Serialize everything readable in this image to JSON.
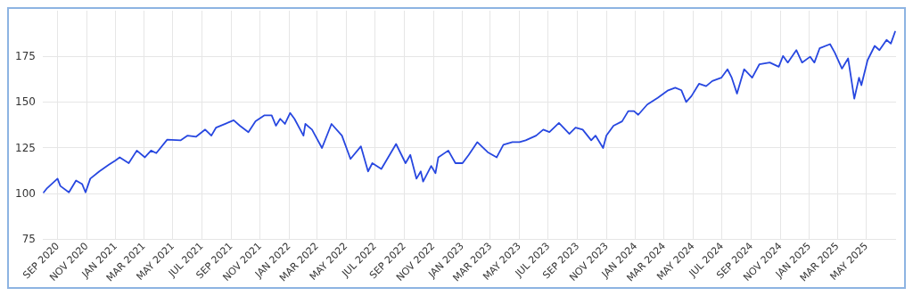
{
  "chart_data": {
    "type": "line",
    "x": [
      "2020-08-03",
      "2020-08-10",
      "2020-09-01",
      "2020-09-07",
      "2020-09-25",
      "2020-10-10",
      "2020-10-23",
      "2020-10-30",
      "2020-11-09",
      "2020-11-28",
      "2020-12-18",
      "2021-01-01",
      "2021-01-10",
      "2021-01-29",
      "2021-02-15",
      "2021-03-04",
      "2021-03-17",
      "2021-03-28",
      "2021-04-20",
      "2021-05-18",
      "2021-06-02",
      "2021-06-20",
      "2021-07-09",
      "2021-07-22",
      "2021-08-01",
      "2021-09-07",
      "2021-09-20",
      "2021-10-08",
      "2021-10-23",
      "2021-11-11",
      "2021-11-26",
      "2021-12-05",
      "2021-12-14",
      "2021-12-24",
      "2022-01-04",
      "2022-01-13",
      "2022-02-01",
      "2022-02-05",
      "2022-02-19",
      "2022-03-12",
      "2022-04-01",
      "2022-04-23",
      "2022-05-11",
      "2022-06-02",
      "2022-06-17",
      "2022-06-26",
      "2022-07-15",
      "2022-08-15",
      "2022-09-04",
      "2022-09-14",
      "2022-09-27",
      "2022-10-06",
      "2022-10-11",
      "2022-10-28",
      "2022-11-06",
      "2022-11-12",
      "2022-12-03",
      "2022-12-18",
      "2023-01-02",
      "2023-01-15",
      "2023-02-02",
      "2023-02-24",
      "2023-03-15",
      "2023-03-29",
      "2023-04-17",
      "2023-05-02",
      "2023-05-15",
      "2023-06-06",
      "2023-06-21",
      "2023-07-04",
      "2023-07-24",
      "2023-08-15",
      "2023-08-28",
      "2023-09-12",
      "2023-09-30",
      "2023-10-09",
      "2023-10-25",
      "2023-11-01",
      "2023-11-16",
      "2023-12-04",
      "2023-12-17",
      "2023-12-29",
      "2024-01-07",
      "2024-01-26",
      "2024-02-17",
      "2024-03-10",
      "2024-03-25",
      "2024-04-07",
      "2024-04-17",
      "2024-04-28",
      "2024-05-14",
      "2024-05-29",
      "2024-06-11",
      "2024-06-30",
      "2024-07-13",
      "2024-07-22",
      "2024-08-02",
      "2024-08-17",
      "2024-09-03",
      "2024-09-18",
      "2024-10-10",
      "2024-10-29",
      "2024-11-07",
      "2024-11-17",
      "2024-12-05",
      "2024-12-17",
      "2025-01-03",
      "2025-01-12",
      "2025-01-23",
      "2025-02-14",
      "2025-02-24",
      "2025-03-11",
      "2025-03-24",
      "2025-04-06",
      "2025-04-16",
      "2025-04-21",
      "2025-05-04",
      "2025-05-19",
      "2025-05-29",
      "2025-06-13",
      "2025-06-22",
      "2025-07-01"
    ],
    "series": [
      {
        "color": "#2747e0",
        "values": [
          100.5,
          102.8,
          108,
          104,
          100.5,
          107,
          105,
          100.5,
          108,
          112,
          115.6,
          118,
          119.7,
          116.5,
          123.4,
          119.7,
          123.4,
          122,
          129.4,
          129,
          131.6,
          131,
          134.9,
          131.6,
          136,
          140,
          137,
          133.5,
          139.4,
          142.7,
          142.7,
          137,
          140.8,
          138,
          144,
          140.8,
          131.6,
          138,
          134.9,
          124.8,
          138,
          131.6,
          118.8,
          125.7,
          112,
          116.5,
          113.3,
          127,
          116.5,
          121,
          108,
          112,
          106.4,
          115,
          111,
          119.7,
          123.4,
          116.5,
          116.5,
          121,
          128,
          122.5,
          119.7,
          126.6,
          128,
          128,
          129,
          131.6,
          134.9,
          133.5,
          138.5,
          132.6,
          136,
          134.9,
          129,
          131.6,
          124.8,
          131.6,
          137,
          139.4,
          145,
          145,
          143,
          148.6,
          152.3,
          156.4,
          157.8,
          156.4,
          150,
          153.2,
          160,
          158.7,
          161.5,
          163.3,
          167.9,
          163.3,
          154.6,
          167.9,
          163.3,
          170.6,
          171.6,
          169.3,
          175.2,
          171.6,
          178.4,
          171.6,
          174.8,
          171.6,
          179.4,
          181.7,
          177,
          168.3,
          173.9,
          151.8,
          163.3,
          159.2,
          172.9,
          180.7,
          178.4,
          184,
          182,
          188.5
        ]
      }
    ],
    "xlim": [
      "2020-08-01",
      "2025-07-03"
    ],
    "xticks": [
      {
        "value": "2020-09-01",
        "label": "SEP 2020"
      },
      {
        "value": "2020-11-01",
        "label": "NOV 2020"
      },
      {
        "value": "2021-01-01",
        "label": "JAN 2021"
      },
      {
        "value": "2021-03-01",
        "label": "MAR 2021"
      },
      {
        "value": "2021-05-01",
        "label": "MAY 2021"
      },
      {
        "value": "2021-07-01",
        "label": "JUL 2021"
      },
      {
        "value": "2021-09-01",
        "label": "SEP 2021"
      },
      {
        "value": "2021-11-01",
        "label": "NOV 2021"
      },
      {
        "value": "2022-01-01",
        "label": "JAN 2022"
      },
      {
        "value": "2022-03-01",
        "label": "MAR 2022"
      },
      {
        "value": "2022-05-01",
        "label": "MAY 2022"
      },
      {
        "value": "2022-07-01",
        "label": "JUL 2022"
      },
      {
        "value": "2022-09-01",
        "label": "SEP 2022"
      },
      {
        "value": "2022-11-01",
        "label": "NOV 2022"
      },
      {
        "value": "2023-01-01",
        "label": "JAN 2023"
      },
      {
        "value": "2023-03-01",
        "label": "MAR 2023"
      },
      {
        "value": "2023-05-01",
        "label": "MAY 2023"
      },
      {
        "value": "2023-07-01",
        "label": "JUL 2023"
      },
      {
        "value": "2023-09-01",
        "label": "SEP 2023"
      },
      {
        "value": "2023-11-01",
        "label": "NOV 2023"
      },
      {
        "value": "2024-01-01",
        "label": "JAN 2024"
      },
      {
        "value": "2024-03-01",
        "label": "MAR 2024"
      },
      {
        "value": "2024-05-01",
        "label": "MAY 2024"
      },
      {
        "value": "2024-07-01",
        "label": "JUL 2024"
      },
      {
        "value": "2024-09-01",
        "label": "SEP 2024"
      },
      {
        "value": "2024-11-01",
        "label": "NOV 2024"
      },
      {
        "value": "2025-01-01",
        "label": "JAN 2025"
      },
      {
        "value": "2025-03-01",
        "label": "MAR 2025"
      },
      {
        "value": "2025-05-01",
        "label": "MAY 2025"
      }
    ],
    "ylim": [
      75,
      200
    ],
    "yticks": [
      75,
      100,
      125,
      150,
      175
    ],
    "grid": true,
    "marker": "none",
    "line_style": "solid"
  }
}
